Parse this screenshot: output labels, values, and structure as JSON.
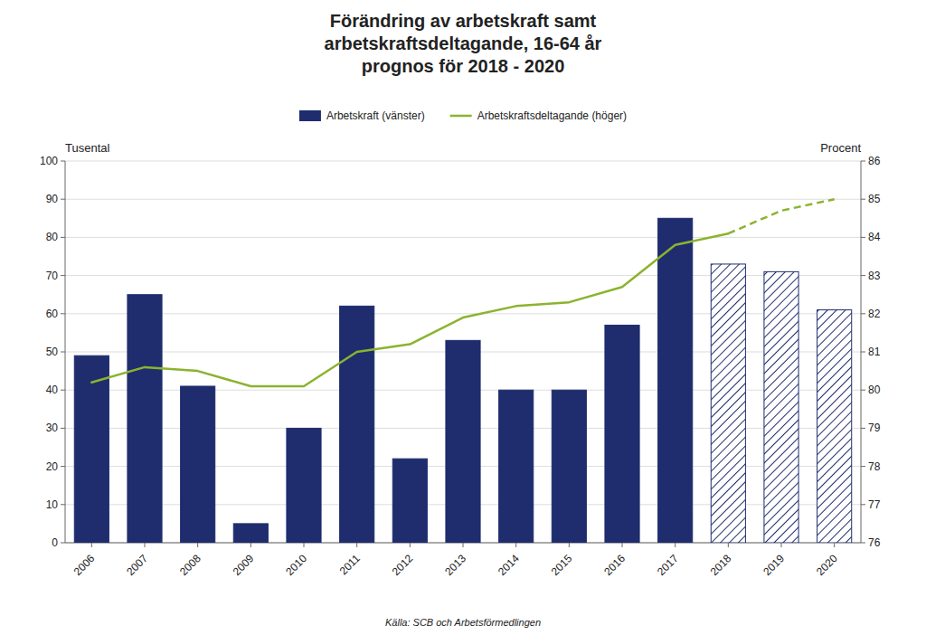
{
  "chart_data": {
    "type": "bar",
    "title": "Förändring av arbetskraft samt\narbetskraftsdeltagande, 16-64 år\nprognos för 2018 - 2020",
    "y_label": "Tusental",
    "y2_label": "Procent",
    "source": "Källa: SCB och Arbetsförmedlingen",
    "categories": [
      "2006",
      "2007",
      "2008",
      "2009",
      "2010",
      "2011",
      "2012",
      "2013",
      "2014",
      "2015",
      "2016",
      "2017",
      "2018",
      "2019",
      "2020"
    ],
    "series": [
      {
        "name": "Arbetskraft (vänster)",
        "type": "bar",
        "color": "#1F2D6E",
        "values": [
          49,
          65,
          41,
          5,
          30,
          62,
          22,
          53,
          40,
          40,
          57,
          85,
          null,
          null,
          null
        ]
      },
      {
        "type": "bar",
        "color": "#1F2D6E",
        "line_style": "hatched",
        "values": [
          null,
          null,
          null,
          null,
          null,
          null,
          null,
          null,
          null,
          null,
          null,
          null,
          73,
          71,
          61
        ]
      },
      {
        "name": "Arbetskraftsdeltagande (höger)",
        "type": "line",
        "axis": "y2",
        "color": "#8BB32E",
        "line_style": "solid",
        "values": [
          80.2,
          80.6,
          80.5,
          80.1,
          80.1,
          81.0,
          81.2,
          81.9,
          82.2,
          82.3,
          82.7,
          83.8,
          84.1,
          null,
          null
        ]
      },
      {
        "type": "line",
        "axis": "y2",
        "color": "#8BB32E",
        "line_style": "dashed",
        "values": [
          null,
          null,
          null,
          null,
          null,
          null,
          null,
          null,
          null,
          null,
          null,
          null,
          84.1,
          84.7,
          85.0
        ]
      }
    ],
    "ylim": [
      0,
      100
    ],
    "yticks": [
      0,
      10,
      20,
      30,
      40,
      50,
      60,
      70,
      80,
      90,
      100
    ],
    "y2lim": [
      76,
      86
    ],
    "y2ticks": [
      76,
      77,
      78,
      79,
      80,
      81,
      82,
      83,
      84,
      85,
      86
    ],
    "grid": true,
    "legend": "top"
  }
}
